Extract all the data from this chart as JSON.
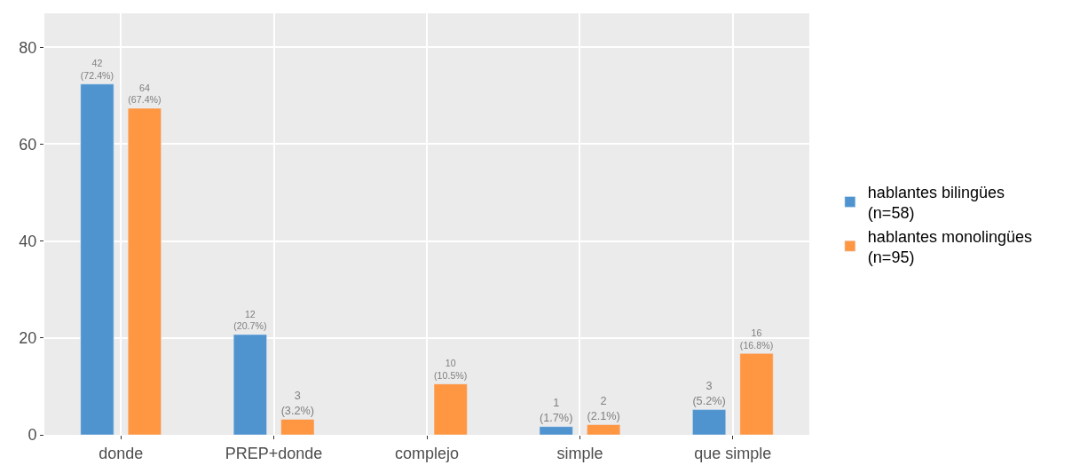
{
  "chart_data": {
    "type": "bar",
    "categories": [
      "donde",
      "PREP+donde",
      "complejo",
      "simple",
      "que simple"
    ],
    "series": [
      {
        "name": "hablantes bilingües\n(n=58)",
        "color": "#4f94cf",
        "values": [
          72.4,
          20.7,
          null,
          1.7,
          5.2
        ],
        "value_labels": [
          "42\n(72.4%)",
          "12\n(20.7%)",
          null,
          "1\n(1.7%)",
          "3\n(5.2%)"
        ]
      },
      {
        "name": "hablantes monolingües\n(n=95)",
        "color": "#ff9642",
        "values": [
          67.4,
          3.2,
          10.5,
          2.1,
          16.8
        ],
        "value_labels": [
          "64\n(67.4%)",
          "3\n(3.2%)",
          "10\n(10.5%)",
          "2\n(2.1%)",
          "16\n(16.8%)"
        ]
      }
    ],
    "ylim": [
      0,
      87
    ],
    "yticks": [
      0,
      20,
      40,
      60,
      80
    ],
    "grid": true,
    "legend": "right"
  }
}
